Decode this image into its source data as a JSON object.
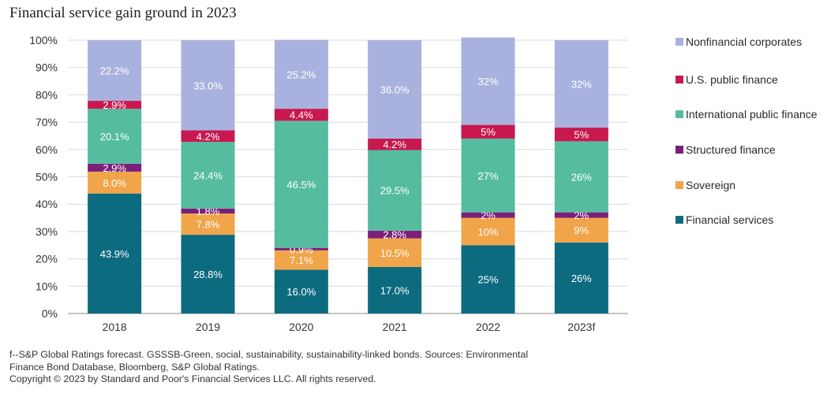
{
  "title": "Financial service gain ground in 2023",
  "chart_data": {
    "type": "bar",
    "stacked": true,
    "categories": [
      "2018",
      "2019",
      "2020",
      "2021",
      "2022",
      "2023f"
    ],
    "ylim": [
      0,
      100
    ],
    "yticks": [
      "0%",
      "10%",
      "20%",
      "30%",
      "40%",
      "50%",
      "60%",
      "70%",
      "80%",
      "90%",
      "100%"
    ],
    "series": [
      {
        "name": "Financial services",
        "color": "#0d6b80",
        "values": [
          43.9,
          28.8,
          16.0,
          17.0,
          25,
          26
        ],
        "labels": [
          "43.9%",
          "28.8%",
          "16.0%",
          "17.0%",
          "25%",
          "26%"
        ]
      },
      {
        "name": "Sovereign",
        "color": "#f0a54a",
        "values": [
          8.0,
          7.8,
          7.1,
          10.5,
          10,
          9
        ],
        "labels": [
          "8.0%",
          "7.8%",
          "7.1%",
          "10.5%",
          "10%",
          "9%"
        ]
      },
      {
        "name": "Structured finance",
        "color": "#7b1f7a",
        "values": [
          2.9,
          1.8,
          0.9,
          2.8,
          2,
          2
        ],
        "labels": [
          "2.9%",
          "1.8%",
          "0.9%",
          "2.8%",
          "2%",
          "2%"
        ]
      },
      {
        "name": "International public finance",
        "color": "#55bca0",
        "values": [
          20.1,
          24.4,
          46.5,
          29.5,
          27,
          26
        ],
        "labels": [
          "20.1%",
          "24.4%",
          "46.5%",
          "29.5%",
          "27%",
          "26%"
        ]
      },
      {
        "name": "U.S. public finance",
        "color": "#c8194f",
        "values": [
          2.9,
          4.2,
          4.4,
          4.2,
          5,
          5
        ],
        "labels": [
          "2.9%",
          "4.2%",
          "4.4%",
          "4.2%",
          "5%",
          "5%"
        ]
      },
      {
        "name": "Nonfinancial corporates",
        "color": "#a9b2de",
        "values": [
          22.2,
          33.0,
          25.2,
          36.0,
          32,
          32
        ],
        "labels": [
          "22.2%",
          "33.0%",
          "25.2%",
          "36.0%",
          "32%",
          "32%"
        ]
      }
    ],
    "legend": [
      {
        "name": "Nonfinancial corporates",
        "color": "#a9b2de"
      },
      {
        "name": "U.S. public finance",
        "color": "#c8194f"
      },
      {
        "name": "International public finance",
        "color": "#55bca0"
      },
      {
        "name": "Structured finance",
        "color": "#7b1f7a"
      },
      {
        "name": "Sovereign",
        "color": "#f0a54a"
      },
      {
        "name": "Financial services",
        "color": "#0d6b80"
      }
    ],
    "legend_position": "right",
    "grid": true
  },
  "footnote": [
    "f--S&P Global Ratings forecast. GSSSB-Green, social, sustainability, sustainability-linked bonds. Sources: Environmental",
    "Finance Bond Database, Bloomberg, S&P Global Ratings.",
    "Copyright © 2023 by Standard and Poor's Financial Services LLC. All rights reserved."
  ]
}
